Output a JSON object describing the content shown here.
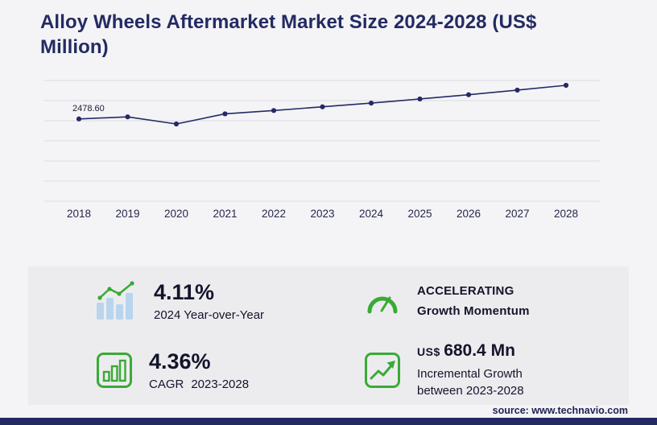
{
  "header": {
    "title": "Alloy Wheels Aftermarket Market Size 2024-2028 (US$ Million)"
  },
  "chart_data": {
    "type": "line",
    "title": "Alloy Wheels Aftermarket Market Size 2024-2028 (US$ Million)",
    "x": [
      "2018",
      "2019",
      "2020",
      "2021",
      "2022",
      "2023",
      "2024",
      "2025",
      "2026",
      "2027",
      "2028"
    ],
    "values": [
      2478.6,
      2545,
      2320,
      2640,
      2745,
      2861.6,
      2979.2,
      3110,
      3245,
      3390,
      3542.1
    ],
    "first_value_label": "2478.60",
    "first_value_label_year": "2018",
    "ylim": [
      2200,
      3650
    ],
    "grid": "horizontal",
    "legend": "none",
    "line_color": "#252a66",
    "marker": "circle"
  },
  "stats": {
    "yoy": {
      "value": "4.11%",
      "label": "2024 Year-over-Year"
    },
    "momentum": {
      "line1": "ACCELERATING",
      "line2": "Growth Momentum"
    },
    "cagr": {
      "value": "4.36%",
      "label_prefix": "CAGR",
      "label_range": "2023-2028"
    },
    "incremental": {
      "currency": "US$",
      "value": "680.4 Mn",
      "line1": "Incremental Growth",
      "line2": "between 2023-2028"
    }
  },
  "footer": {
    "source": "source: www.technavio.com"
  },
  "colors": {
    "accent_green": "#3aaa35",
    "pale_blue": "#b9d5ee",
    "navy": "#232a63",
    "panel_bg": "#ececef",
    "gridline": "#dcdce1",
    "text_dark": "#14142b"
  }
}
